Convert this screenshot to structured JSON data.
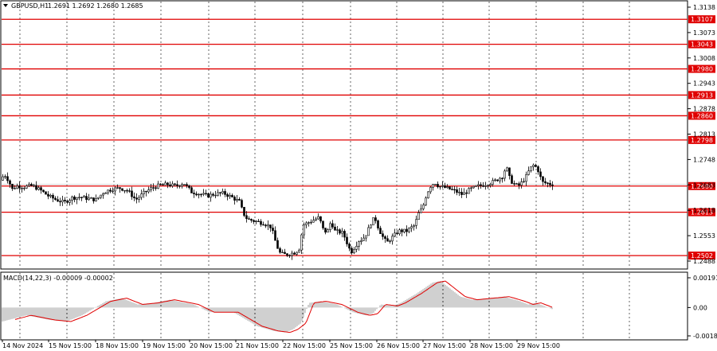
{
  "header": {
    "symbol": "GBPUSD,H1",
    "ohlc": "1.2691 1.2692 1.2680 1.2685"
  },
  "macd": {
    "label": "MACD(14,22,3) -0.00009 -0.00002",
    "ticks": [
      "0.00191",
      "0.00",
      "-0.00182"
    ]
  },
  "colors": {
    "grid": "#000000",
    "level": "#e00000",
    "candle": "#000000",
    "signal": "#e00000",
    "histogram": "#a0a0a0",
    "current": "#ffffff"
  },
  "chart_data": {
    "type": "candlestick",
    "price_ticks": [
      "1.3138",
      "1.3073",
      "1.3008",
      "1.2943",
      "1.2878",
      "1.2813",
      "1.2748",
      "1.2683",
      "1.2618",
      "1.2553",
      "1.2488"
    ],
    "levels": [
      "1.3107",
      "1.3043",
      "1.2980",
      "1.2913",
      "1.2860",
      "1.2798",
      "1.2680",
      "1.2613",
      "1.2502"
    ],
    "current_price": "1.2685",
    "x_labels": [
      "14 Nov 2024",
      "15 Nov 15:00",
      "18 Nov 15:00",
      "19 Nov 15:00",
      "20 Nov 15:00",
      "21 Nov 15:00",
      "22 Nov 15:00",
      "25 Nov 15:00",
      "26 Nov 15:00",
      "27 Nov 15:00",
      "28 Nov 15:00",
      "29 Nov 15:00"
    ],
    "price_path": [
      [
        0,
        1.2695
      ],
      [
        5,
        1.271
      ],
      [
        10,
        1.2695
      ],
      [
        15,
        1.2672
      ],
      [
        20,
        1.268
      ],
      [
        30,
        1.2678
      ],
      [
        40,
        1.2681
      ],
      [
        50,
        1.267
      ],
      [
        60,
        1.2655
      ],
      [
        70,
        1.2645
      ],
      [
        80,
        1.2638
      ],
      [
        90,
        1.265
      ],
      [
        100,
        1.2652
      ],
      [
        110,
        1.2648
      ],
      [
        120,
        1.2645
      ],
      [
        130,
        1.2665
      ],
      [
        140,
        1.2672
      ],
      [
        150,
        1.2675
      ],
      [
        160,
        1.2668
      ],
      [
        170,
        1.2645
      ],
      [
        180,
        1.2662
      ],
      [
        190,
        1.2675
      ],
      [
        200,
        1.2682
      ],
      [
        210,
        1.2684
      ],
      [
        220,
        1.268
      ],
      [
        230,
        1.2688
      ],
      [
        240,
        1.2665
      ],
      [
        250,
        1.266
      ],
      [
        260,
        1.2655
      ],
      [
        270,
        1.266
      ],
      [
        280,
        1.2662
      ],
      [
        290,
        1.2652
      ],
      [
        300,
        1.264
      ],
      [
        305,
        1.261
      ],
      [
        310,
        1.2595
      ],
      [
        320,
        1.259
      ],
      [
        330,
        1.2585
      ],
      [
        340,
        1.2575
      ],
      [
        345,
        1.254
      ],
      [
        350,
        1.251
      ],
      [
        355,
        1.2505
      ],
      [
        360,
        1.2505
      ],
      [
        370,
        1.251
      ],
      [
        375,
        1.252
      ],
      [
        380,
        1.258
      ],
      [
        390,
        1.259
      ],
      [
        400,
        1.26
      ],
      [
        405,
        1.257
      ],
      [
        410,
        1.256
      ],
      [
        415,
        1.259
      ],
      [
        420,
        1.2565
      ],
      [
        430,
        1.256
      ],
      [
        440,
        1.251
      ],
      [
        445,
        1.2525
      ],
      [
        450,
        1.254
      ],
      [
        455,
        1.2545
      ],
      [
        460,
        1.256
      ],
      [
        465,
        1.2585
      ],
      [
        470,
        1.26
      ],
      [
        475,
        1.257
      ],
      [
        480,
        1.255
      ],
      [
        485,
        1.2535
      ],
      [
        490,
        1.2545
      ],
      [
        500,
        1.2565
      ],
      [
        510,
        1.2565
      ],
      [
        520,
        1.258
      ],
      [
        525,
        1.261
      ],
      [
        530,
        1.2625
      ],
      [
        535,
        1.266
      ],
      [
        540,
        1.268
      ],
      [
        545,
        1.269
      ],
      [
        550,
        1.268
      ],
      [
        560,
        1.2675
      ],
      [
        570,
        1.2668
      ],
      [
        580,
        1.2658
      ],
      [
        590,
        1.2672
      ],
      [
        600,
        1.268
      ],
      [
        610,
        1.2685
      ],
      [
        620,
        1.2692
      ],
      [
        630,
        1.2705
      ],
      [
        635,
        1.273
      ],
      [
        640,
        1.2695
      ],
      [
        645,
        1.2685
      ],
      [
        650,
        1.268
      ],
      [
        655,
        1.269
      ],
      [
        660,
        1.2705
      ],
      [
        665,
        1.2725
      ],
      [
        670,
        1.2735
      ],
      [
        675,
        1.272
      ],
      [
        680,
        1.269
      ],
      [
        690,
        1.2685
      ]
    ],
    "macd_hist": [
      [
        0,
        -0.0009
      ],
      [
        30,
        -0.0005
      ],
      [
        60,
        -0.0008
      ],
      [
        80,
        -0.0009
      ],
      [
        100,
        -0.0005
      ],
      [
        130,
        0.0004
      ],
      [
        150,
        0.0006
      ],
      [
        170,
        0.0002
      ],
      [
        190,
        0.0003
      ],
      [
        210,
        0.0005
      ],
      [
        240,
        0.0002
      ],
      [
        260,
        -0.0003
      ],
      [
        290,
        -0.0003
      ],
      [
        300,
        -0.0006
      ],
      [
        320,
        -0.0012
      ],
      [
        340,
        -0.0015
      ],
      [
        355,
        -0.0016
      ],
      [
        365,
        -0.0014
      ],
      [
        375,
        -0.001
      ],
      [
        385,
        0.0003
      ],
      [
        400,
        0.0004
      ],
      [
        420,
        0.0002
      ],
      [
        440,
        -0.0003
      ],
      [
        455,
        -0.0005
      ],
      [
        465,
        -0.0004
      ],
      [
        475,
        0.0002
      ],
      [
        490,
        0.0001
      ],
      [
        500,
        0.0003
      ],
      [
        520,
        0.0009
      ],
      [
        540,
        0.0016
      ],
      [
        550,
        0.0017
      ],
      [
        560,
        0.0013
      ],
      [
        575,
        0.0007
      ],
      [
        590,
        0.0005
      ],
      [
        610,
        0.0006
      ],
      [
        630,
        0.0007
      ],
      [
        650,
        0.0004
      ],
      [
        660,
        0.0002
      ],
      [
        670,
        0.0003
      ],
      [
        680,
        0.0001
      ],
      [
        690,
        -0.0001
      ]
    ]
  }
}
